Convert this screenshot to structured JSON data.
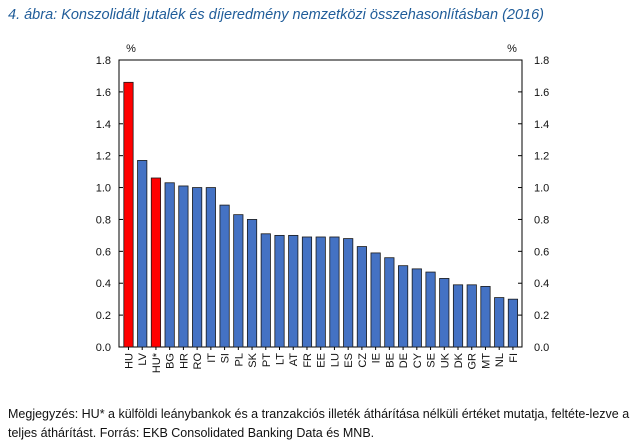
{
  "title": "4. ábra: Konszolidált jutalék és díjeredmény nemzetközi összehasonlításban (2016)",
  "chart_data": {
    "type": "bar",
    "title": "4. ábra: Konszolidált jutalék és díjeredmény nemzetközi összehasonlításban (2016)",
    "ylabel_left": "%",
    "ylabel_right": "%",
    "ylim": [
      0,
      1.8
    ],
    "yticks": [
      "0.0",
      "0.2",
      "0.4",
      "0.6",
      "0.8",
      "1.0",
      "1.2",
      "1.4",
      "1.6",
      "1.8"
    ],
    "grid": false,
    "categories": [
      "HU",
      "LV",
      "HU*",
      "BG",
      "HR",
      "RO",
      "IT",
      "SI",
      "PL",
      "SK",
      "PT",
      "LT",
      "AT",
      "FR",
      "EE",
      "LU",
      "ES",
      "CZ",
      "IE",
      "BE",
      "DE",
      "CY",
      "SE",
      "UK",
      "DK",
      "GR",
      "MT",
      "NL",
      "FI"
    ],
    "values": [
      1.66,
      1.17,
      1.06,
      1.03,
      1.01,
      1.0,
      1.0,
      0.89,
      0.83,
      0.8,
      0.71,
      0.7,
      0.7,
      0.69,
      0.69,
      0.69,
      0.68,
      0.63,
      0.59,
      0.56,
      0.51,
      0.49,
      0.47,
      0.43,
      0.39,
      0.39,
      0.38,
      0.31,
      0.3
    ],
    "highlight": [
      "HU",
      "HU*"
    ],
    "colors": {
      "default": "#4472c4",
      "highlight": "#ff0000",
      "outline": "#1a1a1a"
    }
  },
  "note": "Megjegyzés: HU* a külföldi leánybankok és a tranzakciós illeték áthárítása nélküli értéket mutatja, feltéte-lezve a teljes áthárítást. Forrás: EKB Consolidated Banking Data és MNB."
}
